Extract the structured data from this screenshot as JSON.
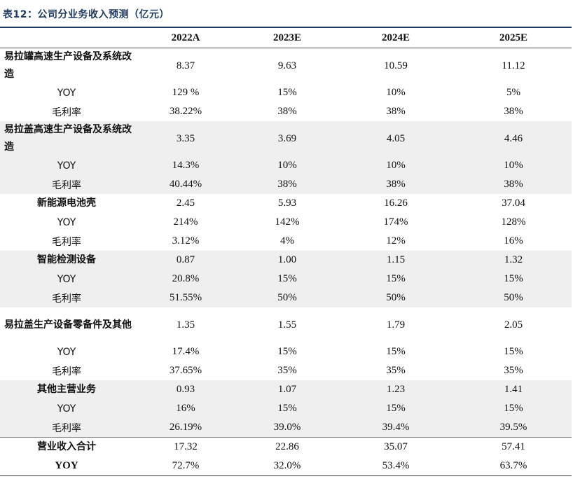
{
  "title": "表12：公司分业务收入预测（亿元）",
  "columns": [
    "",
    "2022A",
    "2023E",
    "2024E",
    "2025E"
  ],
  "segments": [
    {
      "name": "易拉罐高速生产设备及系统改造",
      "revenue": [
        "8.37",
        "9.63",
        "10.59",
        "11.12"
      ],
      "yoy_label": "YOY",
      "yoy": [
        "129 %",
        "15%",
        "10%",
        "5%"
      ],
      "margin_label": "毛利率",
      "margin": [
        "38.22%",
        "38%",
        "38%",
        "38%"
      ]
    },
    {
      "name": "易拉盖高速生产设备及系统改造",
      "revenue": [
        "3.35",
        "3.69",
        "4.05",
        "4.46"
      ],
      "yoy_label": "YOY",
      "yoy": [
        "14.3%",
        "10%",
        "10%",
        "10%"
      ],
      "margin_label": "毛利率",
      "margin": [
        "40.44%",
        "38%",
        "38%",
        "38%"
      ]
    },
    {
      "name": "新能源电池壳",
      "revenue": [
        "2.45",
        "5.93",
        "16.26",
        "37.04"
      ],
      "yoy_label": "YOY",
      "yoy": [
        "214%",
        "142%",
        "174%",
        "128%"
      ],
      "margin_label": "毛利率",
      "margin": [
        "3.12%",
        "4%",
        "12%",
        "16%"
      ]
    },
    {
      "name": "智能检测设备",
      "revenue": [
        "0.87",
        "1.00",
        "1.15",
        "1.32"
      ],
      "yoy_label": "YOY",
      "yoy": [
        "20.8%",
        "15%",
        "15%",
        "15%"
      ],
      "margin_label": "毛利率",
      "margin": [
        "51.55%",
        "50%",
        "50%",
        "50%"
      ]
    },
    {
      "name": "易拉盖生产设备零备件及其他",
      "revenue": [
        "1.35",
        "1.55",
        "1.79",
        "2.05"
      ],
      "yoy_label": "YOY",
      "yoy": [
        "17.4%",
        "15%",
        "15%",
        "15%"
      ],
      "margin_label": "毛利率",
      "margin": [
        "37.65%",
        "35%",
        "35%",
        "35%"
      ]
    },
    {
      "name": "其他主营业务",
      "revenue": [
        "0.93",
        "1.07",
        "1.23",
        "1.41"
      ],
      "yoy_label": "YOY",
      "yoy": [
        "16%",
        "15%",
        "15%",
        "15%"
      ],
      "margin_label": "毛利率",
      "margin": [
        "26.19%",
        "39.0%",
        "39.4%",
        "39.5%"
      ]
    }
  ],
  "total": {
    "name": "营业收入合计",
    "revenue": [
      "17.32",
      "22.86",
      "35.07",
      "57.41"
    ],
    "yoy_label": "YOY",
    "yoy": [
      "72.7%",
      "32.0%",
      "53.4%",
      "63.7%"
    ]
  }
}
